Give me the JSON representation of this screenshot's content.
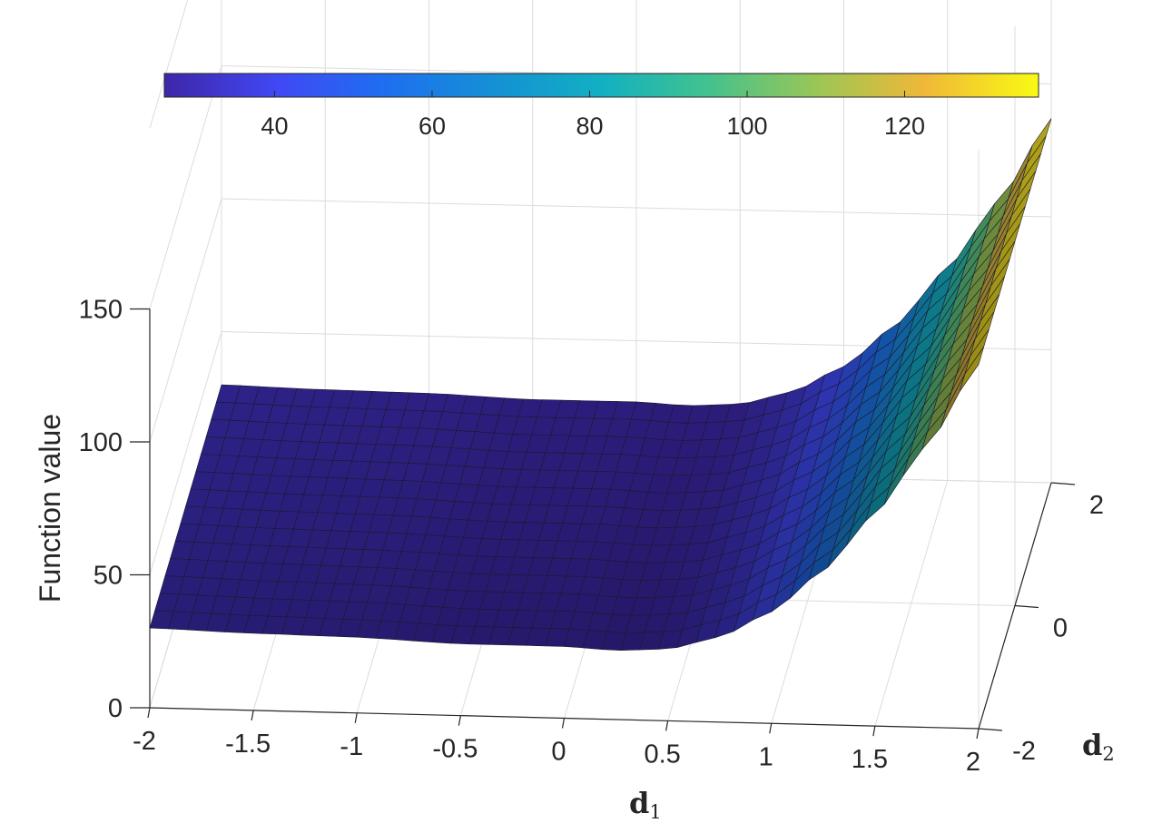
{
  "chart_data": {
    "type": "surface",
    "xlabel": "d",
    "xlabel_sub": "1",
    "ylabel": "d",
    "ylabel_sub": "2",
    "zlabel": "Function value",
    "xlim": [
      -2,
      2
    ],
    "ylim": [
      -2,
      2
    ],
    "zlim": [
      0,
      150
    ],
    "x_ticks": [
      "-2",
      "-1.5",
      "-1",
      "-0.5",
      "0",
      "0.5",
      "1",
      "1.5",
      "2"
    ],
    "y_ticks": [
      "-2",
      "0",
      "2"
    ],
    "z_ticks": [
      "0",
      "50",
      "100",
      "150"
    ],
    "grid": true,
    "colormap": "parula",
    "colorbar": {
      "location": "top",
      "ticks": [
        "40",
        "60",
        "80",
        "100",
        "120"
      ],
      "range": [
        26,
        137
      ]
    },
    "surface_profile_along_d1": {
      "d1": [
        -2,
        -1.5,
        -1,
        -0.5,
        0,
        0.25,
        0.5,
        0.75,
        1,
        1.25,
        1.5,
        1.75,
        2
      ],
      "value": [
        30,
        29,
        28.5,
        27,
        27,
        26,
        27,
        32,
        42,
        58,
        80,
        106,
        137
      ]
    }
  }
}
